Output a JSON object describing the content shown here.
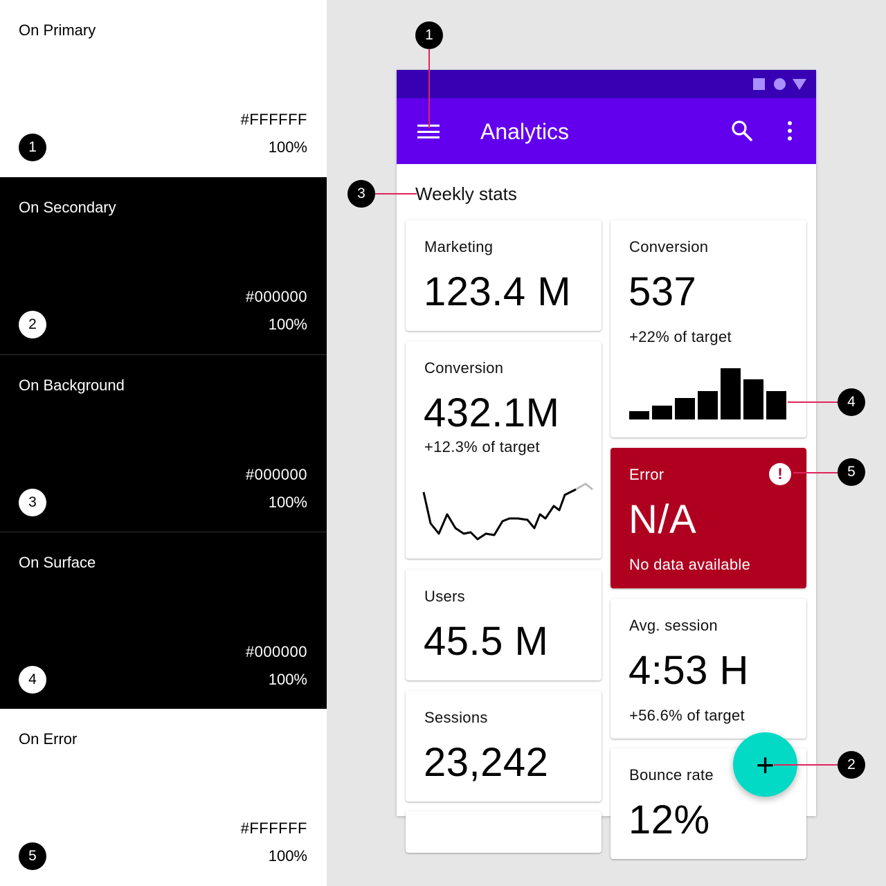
{
  "swatches": [
    {
      "name": "On Primary",
      "hex": "#FFFFFF",
      "opacity": "100%",
      "number": "1",
      "theme": "light"
    },
    {
      "name": "On Secondary",
      "hex": "#000000",
      "opacity": "100%",
      "number": "2",
      "theme": "dark"
    },
    {
      "name": "On Background",
      "hex": "#000000",
      "opacity": "100%",
      "number": "3",
      "theme": "dark"
    },
    {
      "name": "On Surface",
      "hex": "#000000",
      "opacity": "100%",
      "number": "4",
      "theme": "dark"
    },
    {
      "name": "On Error",
      "hex": "#FFFFFF",
      "opacity": "100%",
      "number": "5",
      "theme": "light"
    }
  ],
  "app": {
    "title": "Analytics",
    "section_title": "Weekly stats",
    "colors": {
      "primary": "#6200ee",
      "primary_variant": "#3700b3",
      "secondary": "#03dac5",
      "error": "#b00020",
      "surface": "#ffffff"
    },
    "icons": [
      "menu-icon",
      "search-icon",
      "more-vert-icon",
      "alert-icon",
      "add-icon"
    ],
    "fab_label": "+"
  },
  "cards": {
    "marketing": {
      "label": "Marketing",
      "value": "123.4 M"
    },
    "conversion_top": {
      "label": "Conversion",
      "value": "537",
      "sub": "+22% of target",
      "bars": [
        1,
        1.6,
        2.5,
        3.3,
        6,
        4.7,
        3.3
      ]
    },
    "conversion_line": {
      "label": "Conversion",
      "value": "432.1M",
      "sub": "+12.3% of target"
    },
    "error": {
      "label": "Error",
      "value": "N/A",
      "sub": "No data available",
      "icon": "!"
    },
    "users": {
      "label": "Users",
      "value": "45.5 M"
    },
    "avg_session": {
      "label": "Avg. session",
      "value": "4:53 H",
      "sub": "+56.6% of target"
    },
    "sessions": {
      "label": "Sessions",
      "value": "23,242"
    },
    "bounce_rate": {
      "label": "Bounce rate",
      "value": "12%"
    }
  },
  "callouts": [
    "1",
    "2",
    "3",
    "4",
    "5"
  ]
}
